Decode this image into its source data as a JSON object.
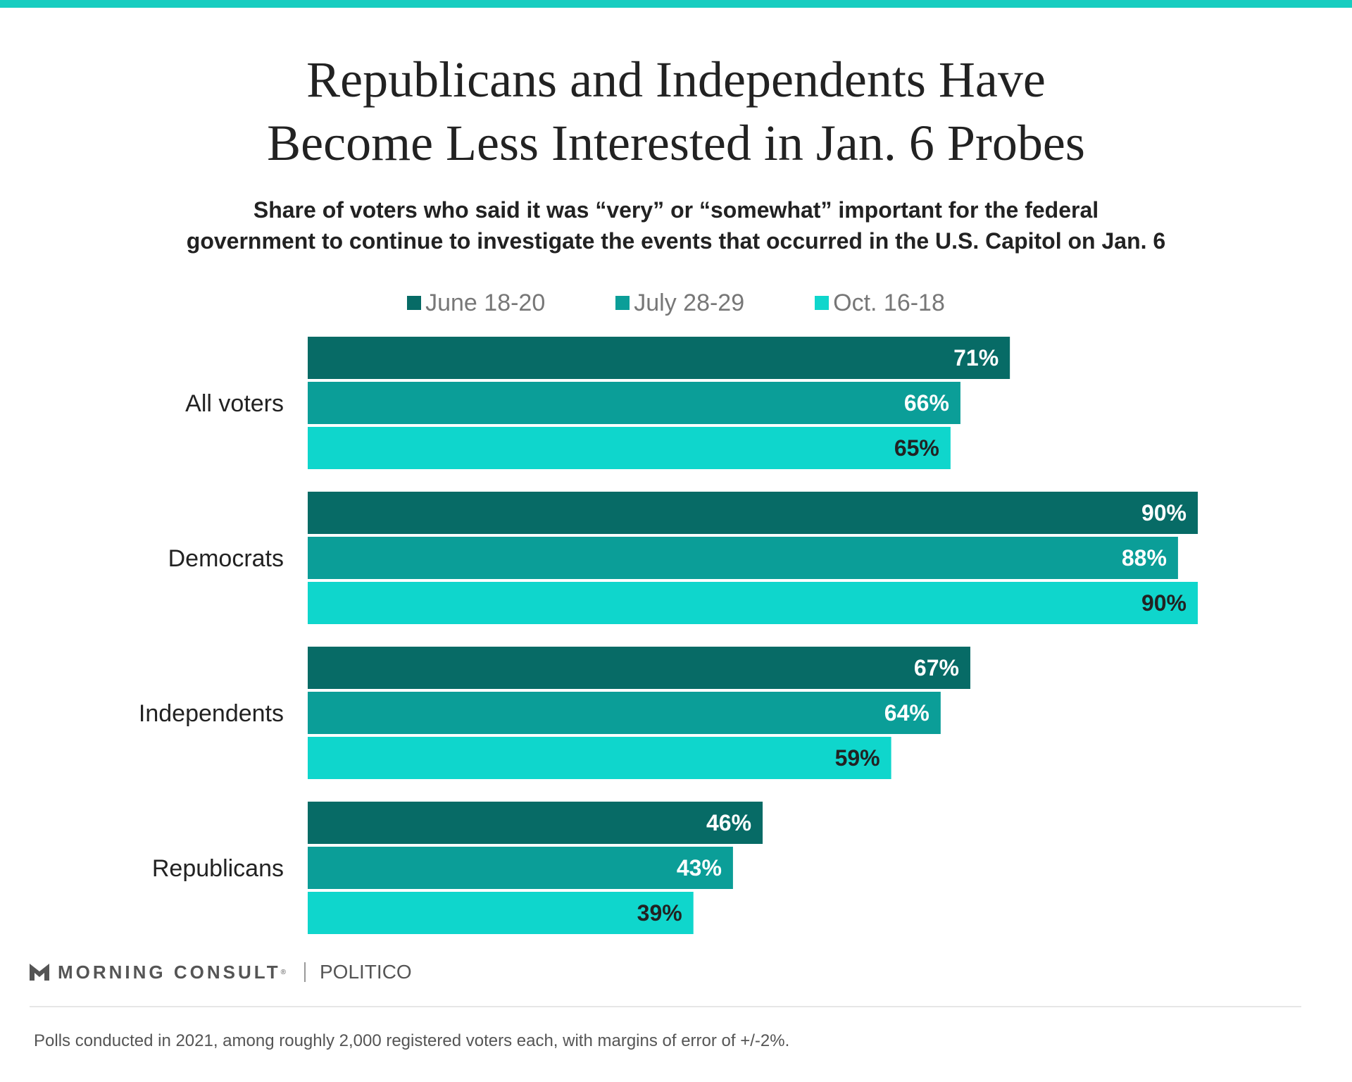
{
  "title_line1": "Republicans and Independents Have",
  "title_line2": "Become Less Interested in Jan. 6 Probes",
  "subtitle_line1": "Share of voters who said it was “very” or “somewhat” important for the federal",
  "subtitle_line2": "government to continue to investigate the events that occurred in the U.S. Capitol on Jan. 6",
  "colors": {
    "accent": "#17cdc0"
  },
  "chart_data": {
    "type": "bar",
    "orientation": "horizontal",
    "categories": [
      "All voters",
      "Democrats",
      "Independents",
      "Republicans"
    ],
    "series": [
      {
        "name": "June 18-20",
        "color": "#076b66",
        "label_color": "#ffffff",
        "values": [
          71,
          90,
          67,
          46
        ]
      },
      {
        "name": "July 28-29",
        "color": "#0b9e98",
        "label_color": "#ffffff",
        "values": [
          66,
          88,
          64,
          43
        ]
      },
      {
        "name": "Oct. 16-18",
        "color": "#0fd6cc",
        "label_color": "#222222",
        "values": [
          65,
          90,
          59,
          39
        ]
      }
    ],
    "value_suffix": "%",
    "xlim": [
      0,
      90
    ],
    "grid": false,
    "legend_position": "top"
  },
  "footer": {
    "brand": "MORNING CONSULT",
    "registered_mark": "®",
    "partner": "POLITICO",
    "note": "Polls conducted in 2021, among roughly 2,000 registered voters each, with margins of error of +/-2%."
  }
}
